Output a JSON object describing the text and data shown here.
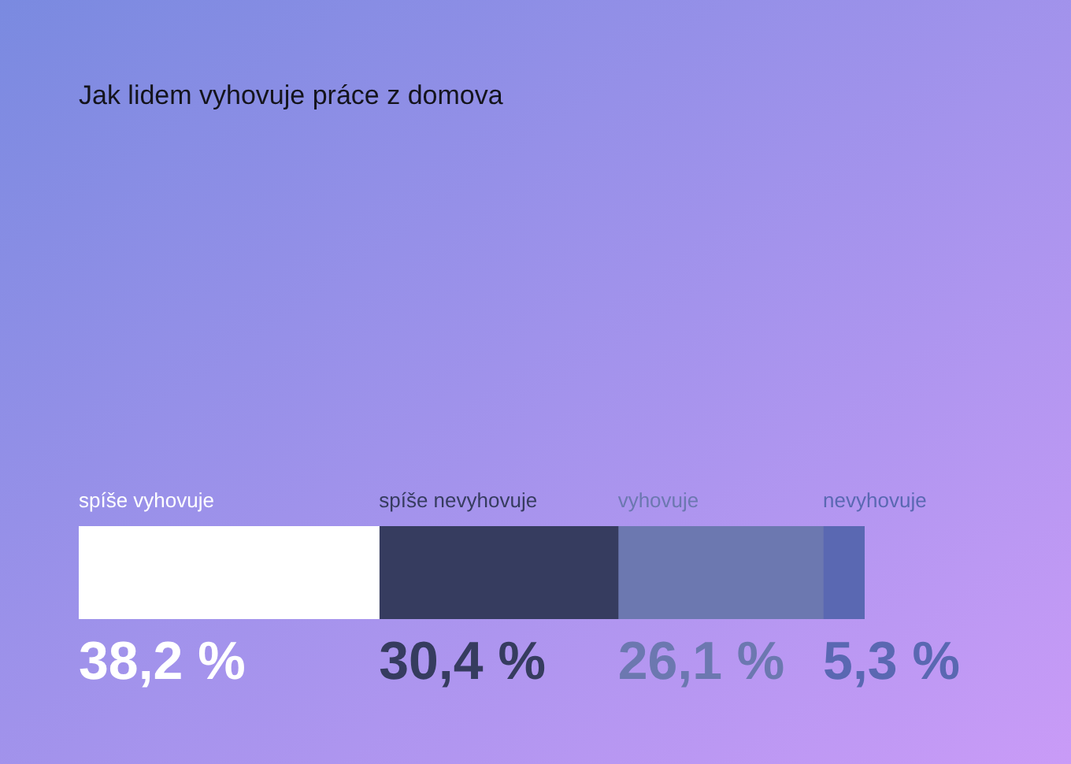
{
  "chart_data": {
    "type": "bar",
    "title": "Jak lidem vyhovuje práce z domova",
    "orientation": "horizontal",
    "stacked": true,
    "categories": [
      null
    ],
    "xlim": [
      0,
      100
    ],
    "tick_labels": false,
    "series": [
      {
        "name": "spíše vyhovuje",
        "color": "#ffffff",
        "values": [
          38.2
        ],
        "value_labels": [
          "38,2 %"
        ]
      },
      {
        "name": "spíše nevyhovuje",
        "color": "#363c5f",
        "values": [
          30.4
        ],
        "value_labels": [
          "30,4 %"
        ]
      },
      {
        "name": "vyhovuje",
        "color": "#6c78b0",
        "values": [
          26.1
        ],
        "value_labels": [
          "26,1 %"
        ]
      },
      {
        "name": "nevyhovuje",
        "color": "#5a68b2",
        "values": [
          5.3
        ],
        "value_labels": [
          "5,3 %"
        ]
      }
    ]
  }
}
